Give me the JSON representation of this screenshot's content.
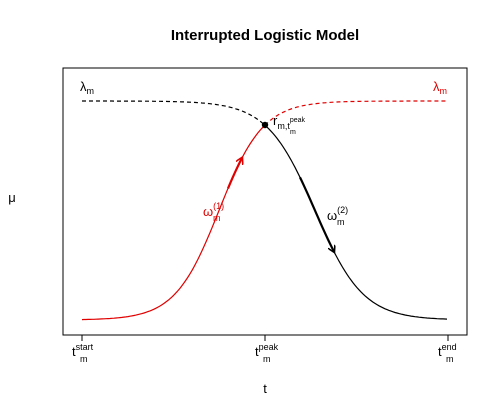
{
  "title": "Interrupted Logistic Model",
  "y_label": "μ",
  "x_label": "t",
  "x_ticks": [
    {
      "base": "t",
      "sup": "start",
      "sub": "m"
    },
    {
      "base": "t",
      "sup": "peak",
      "sub": "m"
    },
    {
      "base": "t",
      "sup": "end",
      "sub": "m"
    }
  ],
  "annotations": {
    "lambda_left": {
      "base": "λ",
      "sub": "m"
    },
    "lambda_right": {
      "base": "λ",
      "sub": "m"
    },
    "r_peak": {
      "base": "r",
      "sub": "m,t",
      "sub_sup": "peak",
      "sub_sub": "m"
    },
    "omega_1": {
      "base": "ω",
      "sup": "(1)",
      "sub": "m"
    },
    "omega_2": {
      "base": "ω",
      "sup": "(2)",
      "sub": "m"
    }
  }
}
